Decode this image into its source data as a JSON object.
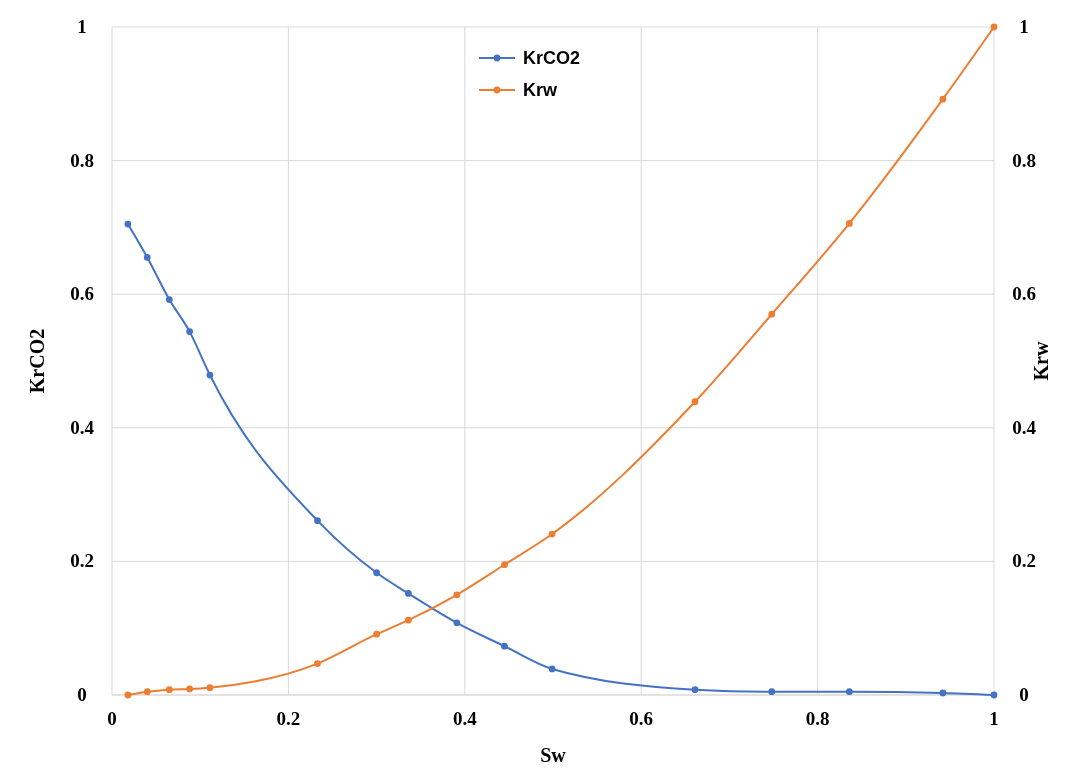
{
  "chart_data": {
    "type": "line",
    "xlabel": "Sw",
    "ylabel": "KrCO2",
    "y2label": "Krw",
    "xlim": [
      0,
      1
    ],
    "xticks": [
      0,
      0.2,
      0.4,
      0.6,
      0.8,
      1
    ],
    "ylim": [
      0,
      1
    ],
    "yticks": [
      0,
      0.2,
      0.4,
      0.6,
      0.8,
      1
    ],
    "y2lim": [
      0,
      1
    ],
    "y2ticks": [
      0,
      0.2,
      0.4,
      0.6,
      0.8,
      1
    ],
    "x": [
      0.018,
      0.04,
      0.065,
      0.088,
      0.111,
      0.233,
      0.3,
      0.336,
      0.391,
      0.445,
      0.499,
      0.661,
      0.748,
      0.836,
      0.942,
      1
    ],
    "series": [
      {
        "name": "KrCO2",
        "color": "#4472c4",
        "values": [
          0.705,
          0.655,
          0.592,
          0.544,
          0.479,
          0.261,
          0.183,
          0.152,
          0.108,
          0.073,
          0.039,
          0.008,
          0.005,
          0.005,
          0.003,
          0
        ]
      },
      {
        "name": "Krw",
        "color": "#ed7d31",
        "axis": "y2",
        "values": [
          0,
          0.005,
          0.008,
          0.009,
          0.011,
          0.047,
          0.091,
          0.112,
          0.15,
          0.195,
          0.241,
          0.439,
          0.57,
          0.706,
          0.892,
          1
        ]
      }
    ],
    "grid": true,
    "legend": "top",
    "marker": "circle",
    "line_style": "solid"
  }
}
